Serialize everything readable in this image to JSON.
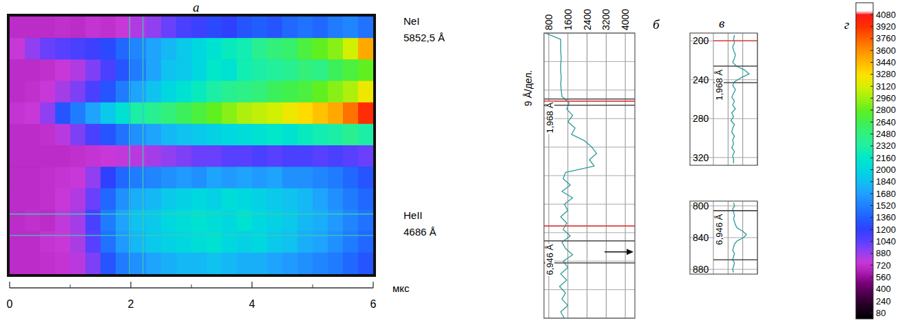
{
  "chart_data": [
    {
      "type": "heatmap",
      "title": "а",
      "x_label": "мкс",
      "xlim": [
        0,
        6
      ],
      "xticks": [
        0,
        2,
        4,
        6
      ],
      "minor_xticks": [
        1,
        3,
        5
      ],
      "line_labels": [
        {
          "name": "NeI",
          "label": "5852,5 Å"
        },
        {
          "name": "HeII",
          "label": "4686 Å"
        }
      ],
      "cursors_x": [
        1.98,
        2.2
      ],
      "cursor_rows": [
        9.2,
        10.2
      ],
      "color": "#3cc8b4",
      "values": [
        [
          700,
          700,
          700,
          720,
          700,
          740,
          720,
          760,
          820,
          900,
          1000,
          1100,
          1150,
          1250,
          1200,
          1300,
          1350,
          1300,
          1400,
          1450,
          1400,
          1500,
          1550,
          1450
        ],
        [
          760,
          900,
          1000,
          1050,
          1100,
          1150,
          1250,
          1400,
          1550,
          1700,
          1800,
          1900,
          2000,
          2100,
          2200,
          2250,
          2400,
          2500,
          2550,
          2700,
          2800,
          2900,
          3100,
          3500
        ],
        [
          700,
          700,
          720,
          760,
          820,
          950,
          1100,
          1300,
          1500,
          1700,
          1850,
          1900,
          2000,
          2150,
          2100,
          2250,
          2300,
          2350,
          2400,
          2500,
          2450,
          2600,
          2700,
          2800
        ],
        [
          700,
          720,
          760,
          850,
          950,
          1100,
          1300,
          1500,
          1700,
          1850,
          2000,
          2100,
          2200,
          2300,
          2400,
          2450,
          2500,
          2600,
          2650,
          2700,
          2800,
          2900,
          3000,
          3200
        ],
        [
          740,
          760,
          900,
          1300,
          1500,
          1700,
          1900,
          2100,
          2300,
          2400,
          2500,
          2600,
          2700,
          2800,
          2900,
          3000,
          3050,
          3100,
          3200,
          3300,
          3400,
          3500,
          3700,
          3950
        ],
        [
          700,
          700,
          720,
          800,
          950,
          1100,
          1300,
          1450,
          1600,
          1700,
          1800,
          1850,
          1900,
          1950,
          2000,
          2050,
          2100,
          2150,
          2100,
          2200,
          2250,
          2300,
          2400,
          2300
        ],
        [
          700,
          700,
          700,
          700,
          720,
          740,
          760,
          780,
          800,
          850,
          900,
          950,
          1000,
          1000,
          1050,
          1050,
          1100,
          1050,
          1100,
          1100,
          1050,
          1100,
          1050,
          1000
        ],
        [
          700,
          700,
          720,
          740,
          760,
          900,
          1200,
          1400,
          1500,
          1550,
          1600,
          1650,
          1600,
          1700,
          1650,
          1700,
          1650,
          1700,
          1600,
          1600,
          1550,
          1500,
          1400,
          1300
        ],
        [
          700,
          700,
          720,
          760,
          820,
          1000,
          1400,
          1600,
          1750,
          1800,
          1900,
          1950,
          2000,
          1950,
          2050,
          2000,
          1950,
          1900,
          1850,
          1800,
          1700,
          1600,
          1500,
          1400
        ],
        [
          700,
          720,
          700,
          780,
          850,
          1100,
          1500,
          1700,
          1850,
          1900,
          2000,
          2050,
          2100,
          2050,
          2000,
          2100,
          2000,
          1950,
          1900,
          1800,
          1750,
          1650,
          1550,
          1450
        ],
        [
          700,
          700,
          740,
          760,
          840,
          1050,
          1450,
          1650,
          1800,
          1900,
          1950,
          2000,
          2050,
          2100,
          2000,
          1950,
          2000,
          1900,
          1850,
          1750,
          1700,
          1600,
          1500,
          1400
        ],
        [
          700,
          700,
          720,
          740,
          800,
          950,
          1300,
          1500,
          1600,
          1700,
          1750,
          1800,
          1800,
          1850,
          1800,
          1750,
          1750,
          1700,
          1650,
          1600,
          1550,
          1500,
          1400,
          1300
        ]
      ]
    },
    {
      "type": "line",
      "title": "б",
      "orientation": "horizontal",
      "y_label": "9 Å/дел.",
      "xlim": [
        600,
        4400
      ],
      "xticks": [
        800,
        1600,
        2400,
        3200,
        4000
      ],
      "ylim": [
        0,
        90
      ],
      "yticks": [
        0,
        9,
        18,
        27,
        36,
        45,
        54,
        63,
        72,
        81,
        90
      ],
      "grid": true,
      "tick_labels": "x",
      "color": "#2a9a9a",
      "y": [
        0,
        2,
        4,
        6,
        8,
        10,
        12,
        14,
        16,
        18,
        20,
        22,
        24,
        26,
        28,
        30,
        32,
        34,
        36,
        38,
        40,
        42,
        44,
        46,
        48,
        50,
        52,
        54,
        56,
        58,
        60,
        62,
        64,
        66,
        68,
        70,
        72,
        74,
        76,
        78,
        80,
        82,
        84,
        86,
        88,
        90
      ],
      "values": [
        650,
        1300,
        1300,
        1300,
        1320,
        1300,
        1300,
        1320,
        1300,
        1320,
        1350,
        1650,
        1550,
        1800,
        1600,
        1900,
        1750,
        2300,
        2600,
        2800,
        2500,
        2700,
        1500,
        1400,
        1700,
        1350,
        1800,
        1450,
        1600,
        1300,
        1550,
        1400,
        1700,
        1350,
        1500,
        1800,
        1400,
        1600,
        1300,
        1550,
        1250,
        1500,
        1350,
        1600,
        1300,
        1450
      ],
      "markers": [
        {
          "values": [
            20.8,
            22.77
          ],
          "color": "#4a4a4a",
          "label": "1,968 Å"
        },
        {
          "values": [
            21.5,
            60.9
          ],
          "color": "#e03c3c"
        },
        {
          "values": [
            65.6,
            72.55
          ],
          "color": "#4a4a4a",
          "label": "6,946 Å"
        }
      ]
    },
    {
      "type": "line",
      "title": "в",
      "orientation": "horizontal",
      "xlim": [
        800,
        3200
      ],
      "xticks": [
        800,
        1600,
        2400,
        3200
      ],
      "ylim": [
        192,
        328
      ],
      "yticks": [
        200,
        240,
        280,
        320
      ],
      "grid": true,
      "tick_labels": "y",
      "color": "#2a9a9a",
      "y": [
        194,
        198,
        202,
        206,
        210,
        214,
        218,
        222,
        226,
        230,
        234,
        238,
        242,
        246,
        250,
        254,
        258,
        262,
        266,
        270,
        274,
        278,
        282,
        286,
        290,
        294,
        298,
        302,
        306,
        310,
        314,
        318,
        322,
        326
      ],
      "values": [
        1950,
        1900,
        1950,
        1850,
        1900,
        2000,
        1950,
        1850,
        2050,
        2500,
        2750,
        2300,
        1950,
        1850,
        2000,
        1900,
        1800,
        1950,
        1850,
        2000,
        1800,
        1900,
        1750,
        1950,
        1850,
        1800,
        1950,
        1850,
        1900,
        1800,
        1950,
        1850,
        1900,
        1900
      ],
      "markers": [
        {
          "values": [
            200
          ],
          "color": "#e03c3c"
        },
        {
          "values": [
            226,
            243
          ],
          "color": "#4a4a4a",
          "label": "1,968 Å"
        }
      ]
    },
    {
      "type": "line",
      "orientation": "horizontal",
      "xlim": [
        800,
        3200
      ],
      "xticks": [
        800,
        1600,
        2400,
        3200
      ],
      "ylim": [
        794,
        886
      ],
      "yticks": [
        800,
        840,
        880
      ],
      "grid": true,
      "tick_labels": "y",
      "color": "#2a9a9a",
      "y": [
        796,
        800,
        804,
        808,
        812,
        816,
        820,
        824,
        828,
        832,
        836,
        840,
        844,
        848,
        852,
        856,
        860,
        864,
        868,
        872,
        876,
        880,
        884
      ],
      "values": [
        1900,
        1950,
        1850,
        1900,
        1950,
        1900,
        1950,
        2000,
        2100,
        2400,
        2600,
        2450,
        2100,
        1950,
        1900,
        1850,
        1950,
        1900,
        1850,
        1950,
        1900,
        1850,
        1900
      ],
      "markers": [
        {
          "values": [
            806,
            868
          ],
          "color": "#4a4a4a",
          "label": "6,946 Å"
        }
      ]
    },
    {
      "type": "colorbar",
      "title": "г",
      "range": [
        0,
        4240
      ],
      "ticks": [
        80,
        240,
        400,
        560,
        720,
        880,
        1040,
        1200,
        1360,
        1520,
        1680,
        1840,
        2000,
        2160,
        2320,
        2480,
        2640,
        2800,
        2960,
        3120,
        3280,
        3440,
        3600,
        3760,
        3920,
        4080
      ]
    }
  ]
}
